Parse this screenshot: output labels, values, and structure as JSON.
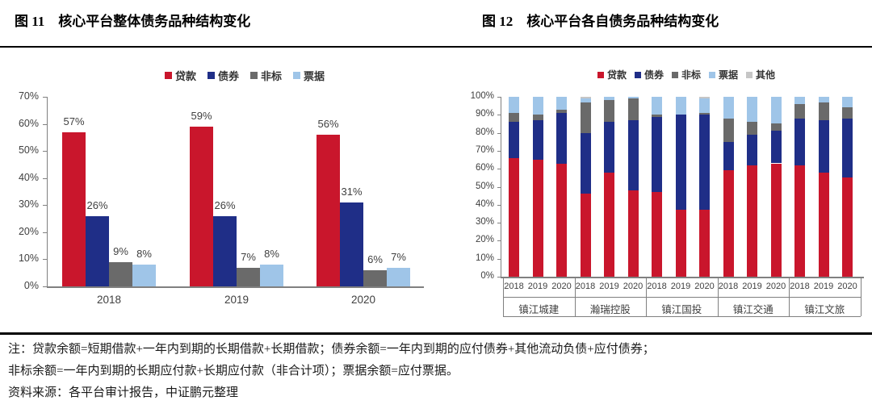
{
  "notes": {
    "line1": "注：贷款余额=短期借款+一年内到期的长期借款+长期借款；债券余额=一年内到期的应付债券+其他流动负债+应付债券；",
    "line2": "非标余额=一年内到期的长期应付款+长期应付款（非合计项）；票据余额=应付票据。",
    "source": "资料来源：各平台审计报告，中证鹏元整理"
  },
  "colors": {
    "loan": "#c9162c",
    "bond": "#1f2e87",
    "nonstandard": "#6a6a6a",
    "bill": "#9fc5e8",
    "other": "#c6c6c6",
    "axis": "#808080",
    "tick_text": "#404040"
  },
  "chart_data": [
    {
      "type": "bar",
      "title": "图 11　核心平台整体债务品种结构变化",
      "categories": [
        "2018",
        "2019",
        "2020"
      ],
      "series": [
        {
          "name": "贷款",
          "color": "#c9162c",
          "values": [
            57,
            59,
            56
          ]
        },
        {
          "name": "债券",
          "color": "#1f2e87",
          "values": [
            26,
            26,
            31
          ]
        },
        {
          "name": "非标",
          "color": "#6a6a6a",
          "values": [
            9,
            7,
            6
          ]
        },
        {
          "name": "票据",
          "color": "#9fc5e8",
          "values": [
            8,
            8,
            7
          ]
        }
      ],
      "ylabel": "",
      "xlabel": "",
      "ylim": [
        0,
        70
      ],
      "ytick_step": 10,
      "ytick_suffix": "%",
      "data_labels": true,
      "grid": false,
      "legend_position": "top"
    },
    {
      "type": "stacked-bar-100",
      "title": "图 12　核心平台各自债务品种结构变化",
      "groups": [
        "镇江城建",
        "瀚瑞控股",
        "镇江国投",
        "镇江交通",
        "镇江文旅"
      ],
      "years": [
        "2018",
        "2019",
        "2020"
      ],
      "series": [
        {
          "name": "贷款",
          "color": "#c9162c",
          "values": [
            [
              66,
              65,
              63
            ],
            [
              46,
              58,
              48
            ],
            [
              47,
              37,
              37
            ],
            [
              59,
              62,
              63
            ],
            [
              62,
              58,
              55
            ]
          ]
        },
        {
          "name": "债券",
          "color": "#1f2e87",
          "values": [
            [
              20,
              22,
              28
            ],
            [
              34,
              28,
              39
            ],
            [
              42,
              53,
              53
            ],
            [
              16,
              17,
              18
            ],
            [
              26,
              29,
              33
            ]
          ]
        },
        {
          "name": "非标",
          "color": "#6a6a6a",
          "values": [
            [
              5,
              3,
              2
            ],
            [
              17,
              12,
              12
            ],
            [
              1,
              0,
              1
            ],
            [
              13,
              7,
              4
            ],
            [
              8,
              10,
              6
            ]
          ]
        },
        {
          "name": "票据",
          "color": "#9fc5e8",
          "values": [
            [
              9,
              10,
              7
            ],
            [
              2,
              2,
              1
            ],
            [
              10,
              10,
              8
            ],
            [
              12,
              14,
              15
            ],
            [
              4,
              3,
              6
            ]
          ]
        },
        {
          "name": "其他",
          "color": "#c6c6c6",
          "values": [
            [
              0,
              0,
              0
            ],
            [
              1,
              0,
              0
            ],
            [
              0,
              0,
              1
            ],
            [
              0,
              0,
              0
            ],
            [
              0,
              0,
              0
            ]
          ]
        }
      ],
      "ylabel": "",
      "xlabel": "",
      "ylim": [
        0,
        100
      ],
      "ytick_step": 10,
      "ytick_suffix": "%",
      "data_labels": false,
      "grid": false,
      "legend_position": "top"
    }
  ]
}
